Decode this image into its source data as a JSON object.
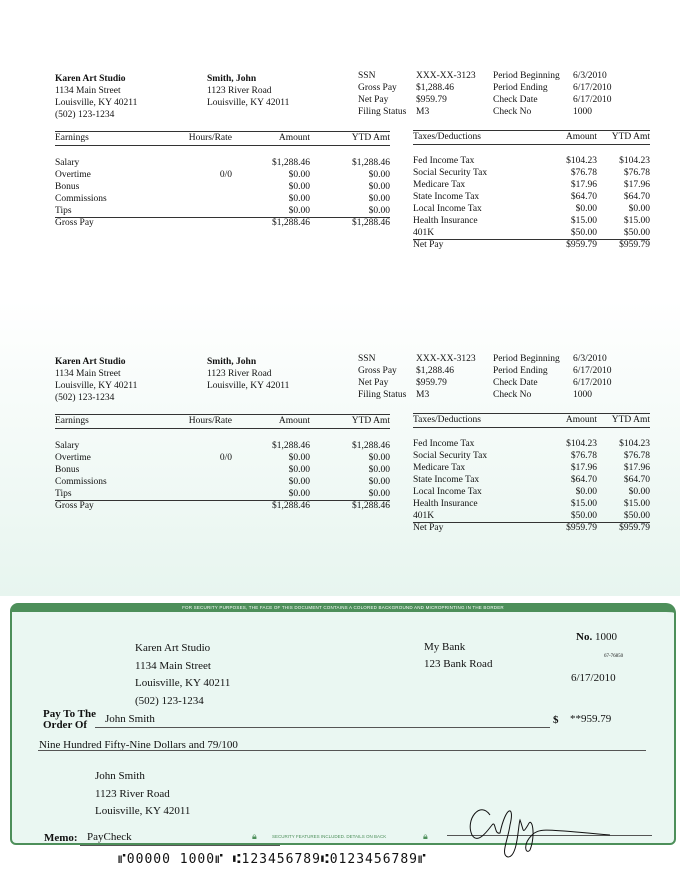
{
  "stub": {
    "employer": {
      "name": "Karen Art Studio",
      "street": "1134 Main Street",
      "city": "Louisville, KY 40211",
      "phone": "(502) 123-1234"
    },
    "employee": {
      "name": "Smith, John",
      "street": "1123 River Road",
      "city": "Louisville, KY 42011"
    },
    "summary": [
      {
        "label": "SSN",
        "value": "XXX-XX-3123"
      },
      {
        "label": "Gross Pay",
        "value": "$1,288.46"
      },
      {
        "label": "Net Pay",
        "value": "$959.79"
      },
      {
        "label": "Filing Status",
        "value": "M3"
      }
    ],
    "period": [
      {
        "label": "Period Beginning",
        "value": "6/3/2010"
      },
      {
        "label": "Period Ending",
        "value": "6/17/2010"
      },
      {
        "label": "Check Date",
        "value": "6/17/2010"
      },
      {
        "label": "Check No",
        "value": "1000"
      }
    ],
    "earnings_headers": [
      "Earnings",
      "Hours/Rate",
      "Amount",
      "YTD Amt"
    ],
    "earnings": [
      [
        "Salary",
        "",
        "$1,288.46",
        "$1,288.46"
      ],
      [
        "Overtime",
        "0/0",
        "$0.00",
        "$0.00"
      ],
      [
        "Bonus",
        "",
        "$0.00",
        "$0.00"
      ],
      [
        "Commissions",
        "",
        "$0.00",
        "$0.00"
      ],
      [
        "Tips",
        "",
        "$0.00",
        "$0.00"
      ]
    ],
    "earnings_total": [
      "Gross Pay",
      "",
      "$1,288.46",
      "$1,288.46"
    ],
    "deduction_headers": [
      "Taxes/Deductions",
      "Amount",
      "YTD Amt"
    ],
    "deductions": [
      [
        "Fed Income Tax",
        "$104.23",
        "$104.23"
      ],
      [
        "Social Security Tax",
        "$76.78",
        "$76.78"
      ],
      [
        "Medicare Tax",
        "$17.96",
        "$17.96"
      ],
      [
        "State Income Tax",
        "$64.70",
        "$64.70"
      ],
      [
        "Local Income Tax",
        "$0.00",
        "$0.00"
      ],
      [
        "Health Insurance",
        "$15.00",
        "$15.00"
      ],
      [
        "401K",
        "$50.00",
        "$50.00"
      ]
    ],
    "deduction_total": [
      "Net Pay",
      "$959.79",
      "$959.79"
    ]
  },
  "check": {
    "security_band": "FOR SECURITY PURPOSES, THE FACE OF THIS DOCUMENT CONTAINS A COLORED BACKGROUND AND MICROPRINTING IN THE BORDER",
    "payer": [
      "Karen Art Studio",
      "1134 Main Street",
      "Louisville, KY 40211",
      "(502) 123-1234"
    ],
    "bank": [
      "My Bank",
      "123 Bank Road"
    ],
    "number_label": "No.",
    "number": "1000",
    "routing_fraction": "67-76850",
    "date": "6/17/2010",
    "pay_to_label_1": "Pay To The",
    "pay_to_label_2": "Order Of",
    "payee": "John Smith",
    "dollar_sign": "$",
    "amount": "**959.79",
    "amount_words": "Nine Hundred Fifty-Nine Dollars and 79/100",
    "payee_address": [
      "John Smith",
      "1123 River Road",
      "Louisville, KY 42011"
    ],
    "memo_label": "Memo:",
    "memo": "PayCheck",
    "security_note": "SECURITY FEATURES INCLUDED. DETAILS ON BACK",
    "micr": "⑈00000 1000⑈ ⑆123456789⑆0123456789⑈",
    "brand_color": "#4d8f5a",
    "background_color": "#eaf7f2"
  }
}
